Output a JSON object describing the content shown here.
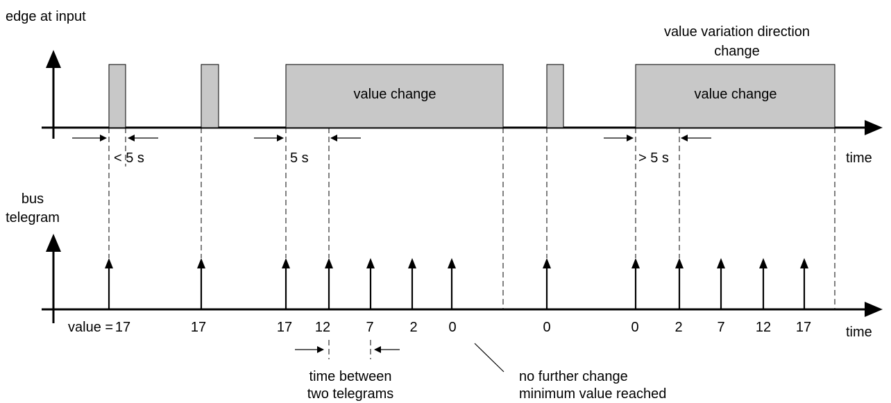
{
  "top_chart": {
    "ylabel": "edge at input",
    "xlabel": "time",
    "annotation_line1": "value variation direction",
    "annotation_line2": "change",
    "pulse_labels": [
      "value change",
      "value change"
    ],
    "interval_labels": [
      "< 5 s",
      "5 s",
      "> 5 s"
    ]
  },
  "bottom_chart": {
    "ylabel_line1": "bus",
    "ylabel_line2": "telegram",
    "xlabel": "time",
    "first_value_prefix": "value = ",
    "telegram_values": [
      "17",
      "17",
      "17",
      "12",
      "7",
      "2",
      "0",
      "0",
      "0",
      "2",
      "7",
      "12",
      "17"
    ],
    "between_line1": "time between",
    "between_line2": "two telegrams",
    "note_line1": "no further change",
    "note_line2": "minimum value reached"
  }
}
